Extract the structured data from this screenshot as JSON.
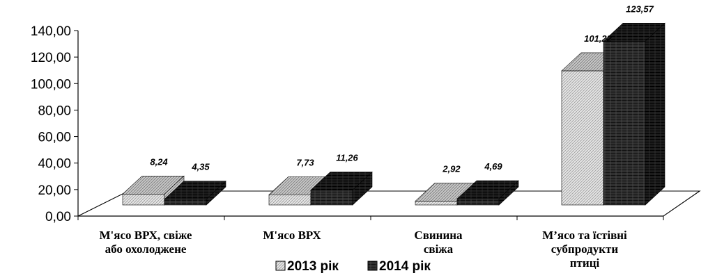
{
  "chart_data": {
    "type": "bar",
    "title": "",
    "xlabel": "",
    "ylabel": "",
    "ylim": [
      0,
      140
    ],
    "yticks": [
      "0,00",
      "20,00",
      "40,00",
      "60,00",
      "80,00",
      "100,00",
      "120,00",
      "140,00"
    ],
    "categories": [
      [
        "М'ясо ВРХ, свіже",
        "або охолоджене"
      ],
      [
        "М'ясо ВРХ"
      ],
      [
        "Свинина",
        "свіжа"
      ],
      [
        "М’ясо та їстівні",
        "субпродукти",
        "птиці"
      ]
    ],
    "series": [
      {
        "name": "2013 рік",
        "values": [
          8.24,
          7.73,
          2.92,
          101.22
        ],
        "labels": [
          "8,24",
          "7,73",
          "2,92",
          "101,22"
        ]
      },
      {
        "name": "2014 рік",
        "values": [
          4.35,
          11.26,
          4.69,
          123.57
        ],
        "labels": [
          "4,35",
          "11,26",
          "4,69",
          "123,57"
        ]
      }
    ],
    "legend": "bottom",
    "grid": false
  },
  "colors": {
    "series_2013": "#e2e2e2",
    "series_2014": "#2b2b2b",
    "axis": "#000000"
  }
}
